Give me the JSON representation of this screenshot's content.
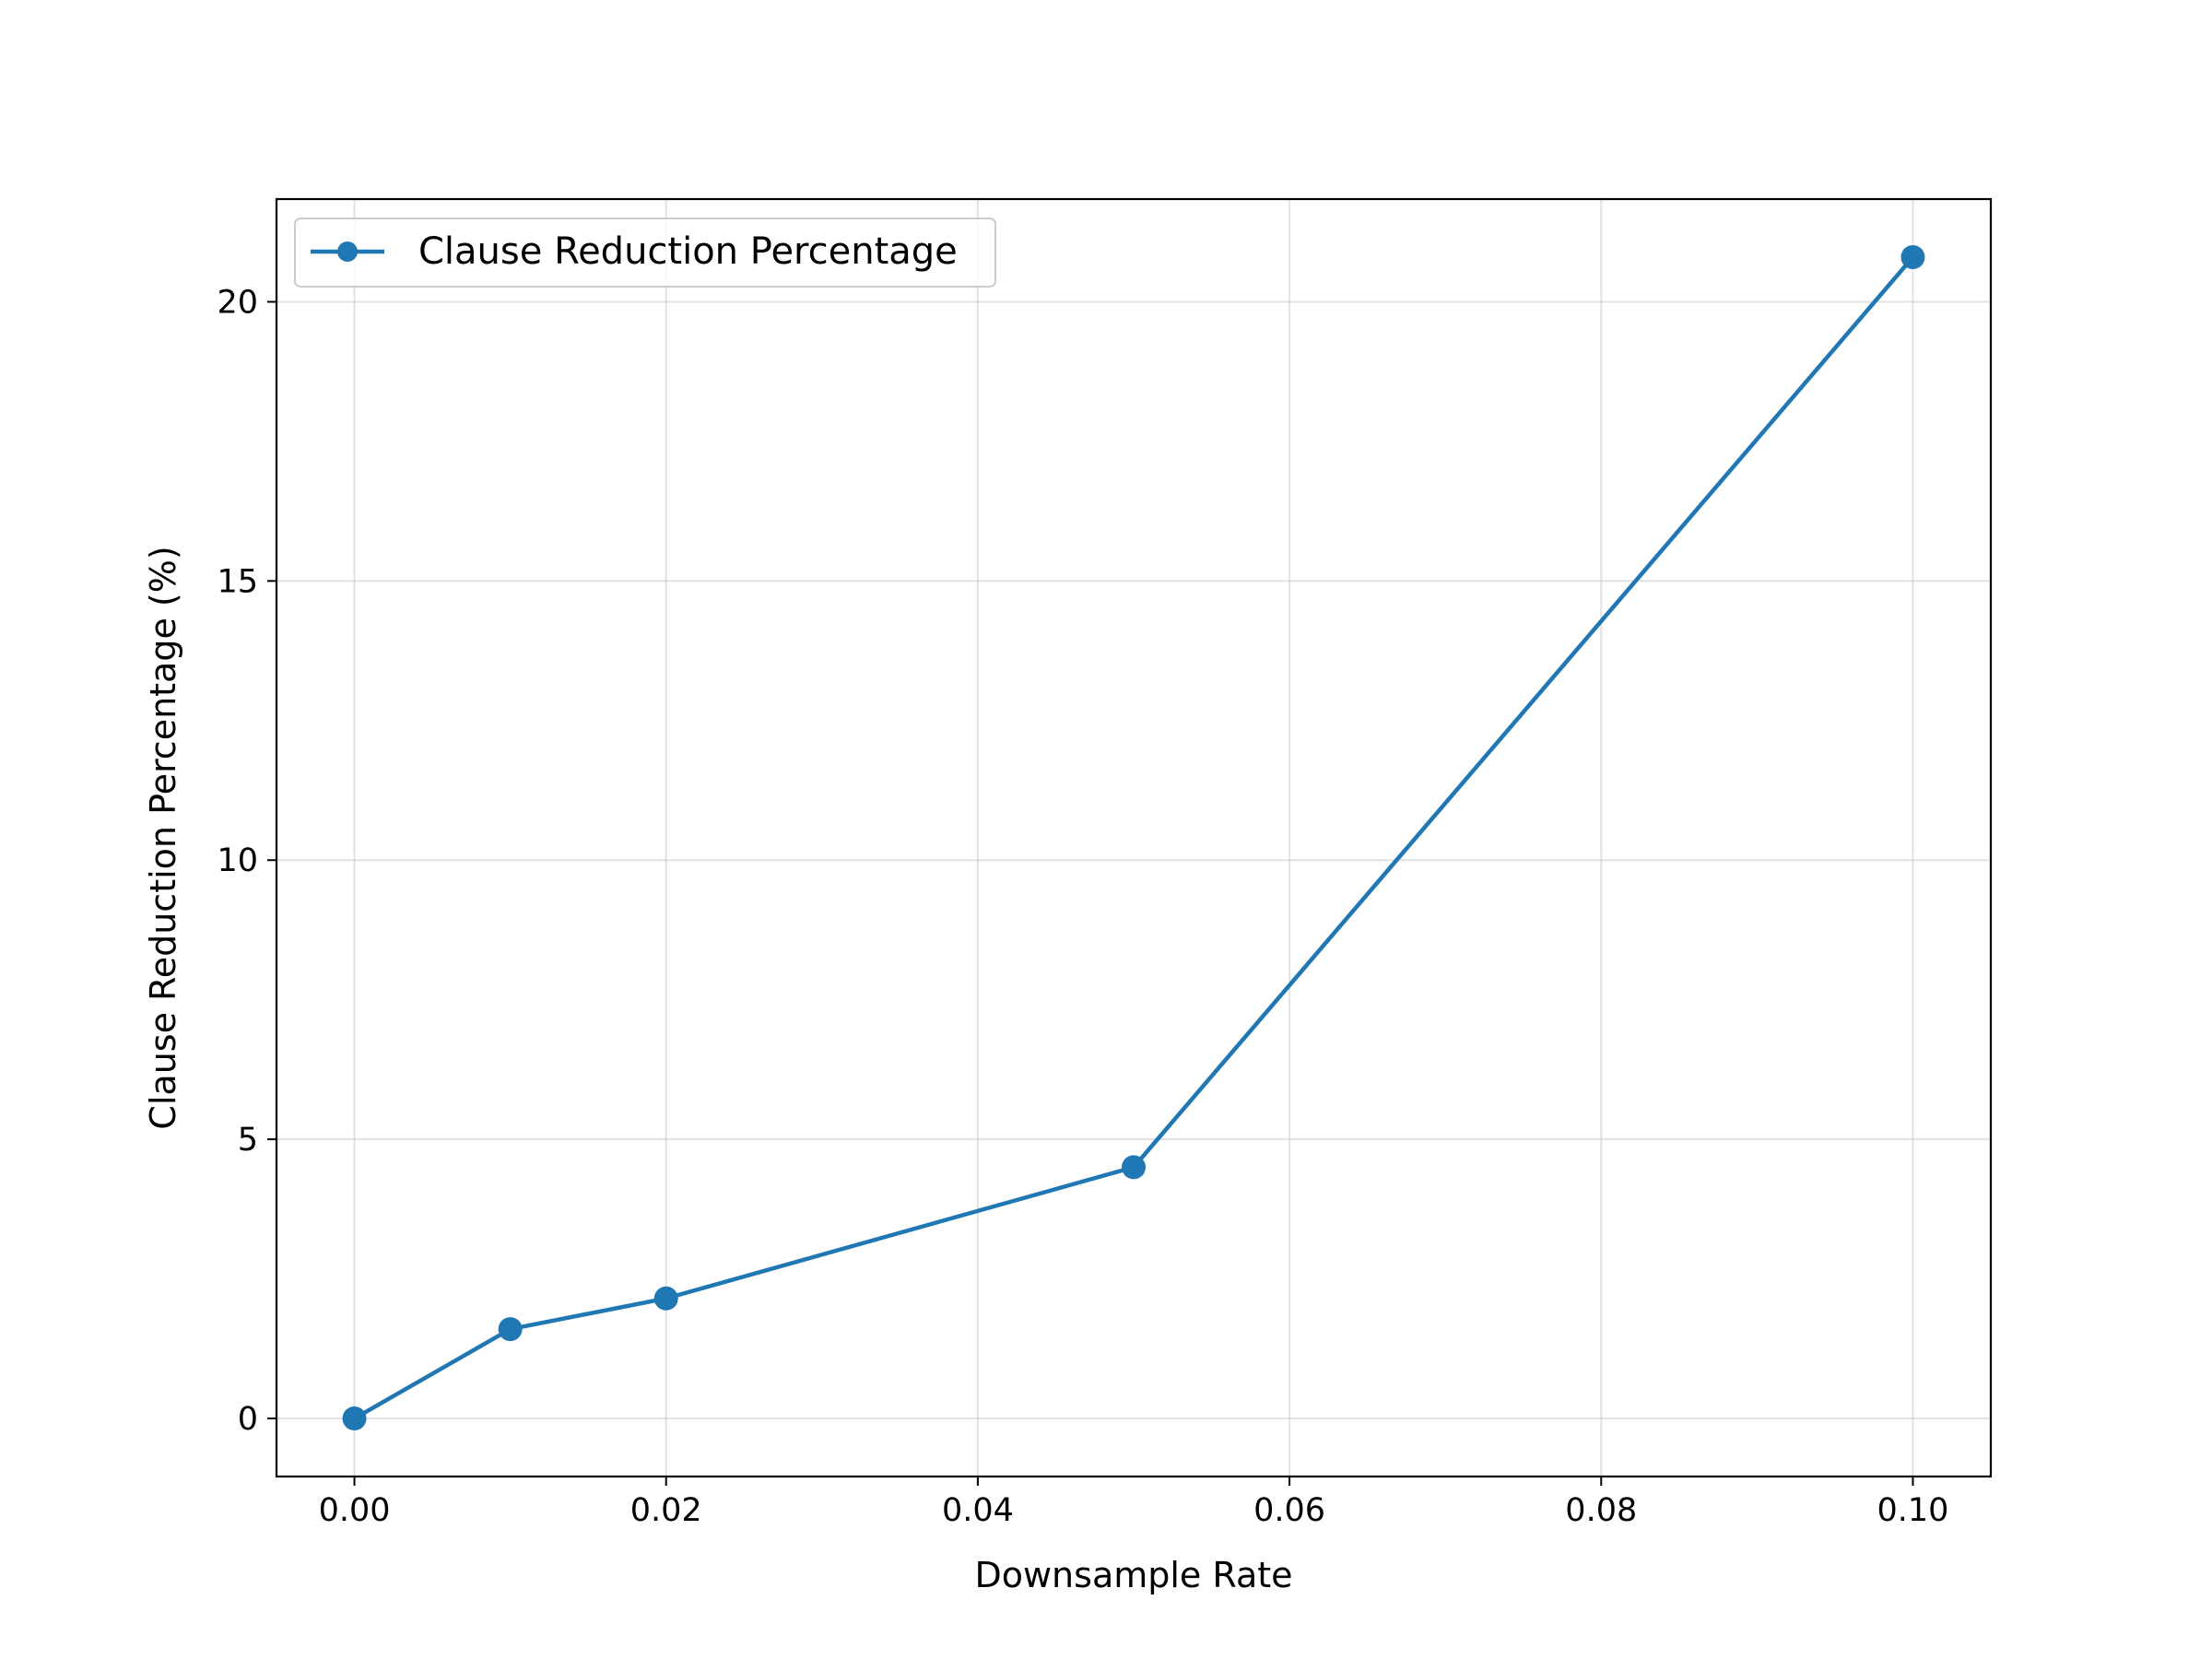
{
  "chart_data": {
    "type": "line",
    "title": "",
    "xlabel": "Downsample Rate",
    "ylabel": "Clause Reduction Percentage (%)",
    "xlim": [
      -0.005,
      0.105
    ],
    "ylim": [
      -1.04,
      21.84
    ],
    "x_ticks": [
      0.0,
      0.02,
      0.04,
      0.06,
      0.08,
      0.1
    ],
    "x_tick_labels": [
      "0.00",
      "0.02",
      "0.04",
      "0.06",
      "0.08",
      "0.10"
    ],
    "y_ticks": [
      0,
      5,
      10,
      15,
      20
    ],
    "y_tick_labels": [
      "0",
      "5",
      "10",
      "15",
      "20"
    ],
    "grid": true,
    "legend_position": "upper-left",
    "series": [
      {
        "name": "Clause Reduction Percentage",
        "color": "#1f77b4",
        "marker": "circle",
        "x": [
          0.0,
          0.01,
          0.02,
          0.05,
          0.1
        ],
        "y": [
          0.0,
          1.6,
          2.15,
          4.5,
          20.8
        ]
      }
    ]
  }
}
